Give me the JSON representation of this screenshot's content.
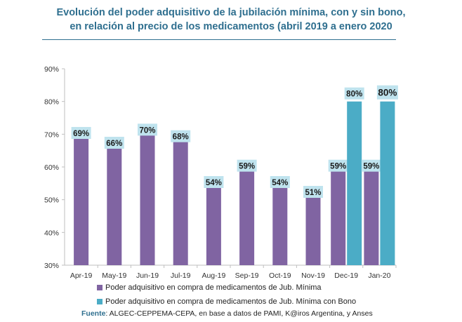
{
  "title_line1": "Evolución del poder adquisitivo de la jubilación mínima, con y sin bono,",
  "title_line2": "en relación al precio de los medicamentos (abril 2019 a enero 2020",
  "source_label": "Fuente",
  "source_text": ": ALGEC-CEPPEMA-CEPA, en base a datos de PAMI, K@iros Argentina, y Anses",
  "chart_data": {
    "type": "bar",
    "categories": [
      "Apr-19",
      "May-19",
      "Jun-19",
      "Jul-19",
      "Aug-19",
      "Sep-19",
      "Oct-19",
      "Nov-19",
      "Dec-19",
      "Jan-20"
    ],
    "ylim": [
      30,
      90
    ],
    "yticks": [
      30,
      40,
      50,
      60,
      70,
      80,
      90
    ],
    "ytick_labels": [
      "30%",
      "40%",
      "50%",
      "60%",
      "70%",
      "80%",
      "90%"
    ],
    "legend_position": "bottom",
    "series": [
      {
        "name": "Poder adquisitivo en compra de medicamentos de Jub. Mínima",
        "color": "#8064a2",
        "values": [
          69,
          66,
          70,
          68,
          54,
          59,
          54,
          51,
          59,
          59
        ],
        "labels": [
          "69%",
          "66%",
          "70%",
          "68%",
          "54%",
          "59%",
          "54%",
          "51%",
          "59%",
          "59%"
        ]
      },
      {
        "name": "Poder adquisitivo en compra de medicamentos de Jub. Mínima con Bono",
        "color": "#4bacc6",
        "values": [
          null,
          null,
          null,
          null,
          null,
          null,
          null,
          null,
          80,
          80
        ],
        "labels": [
          "",
          "",
          "",
          "",
          "",
          "",
          "",
          "",
          "80%",
          "80%"
        ]
      }
    ],
    "label_bg_color": "#bfe3ee"
  }
}
